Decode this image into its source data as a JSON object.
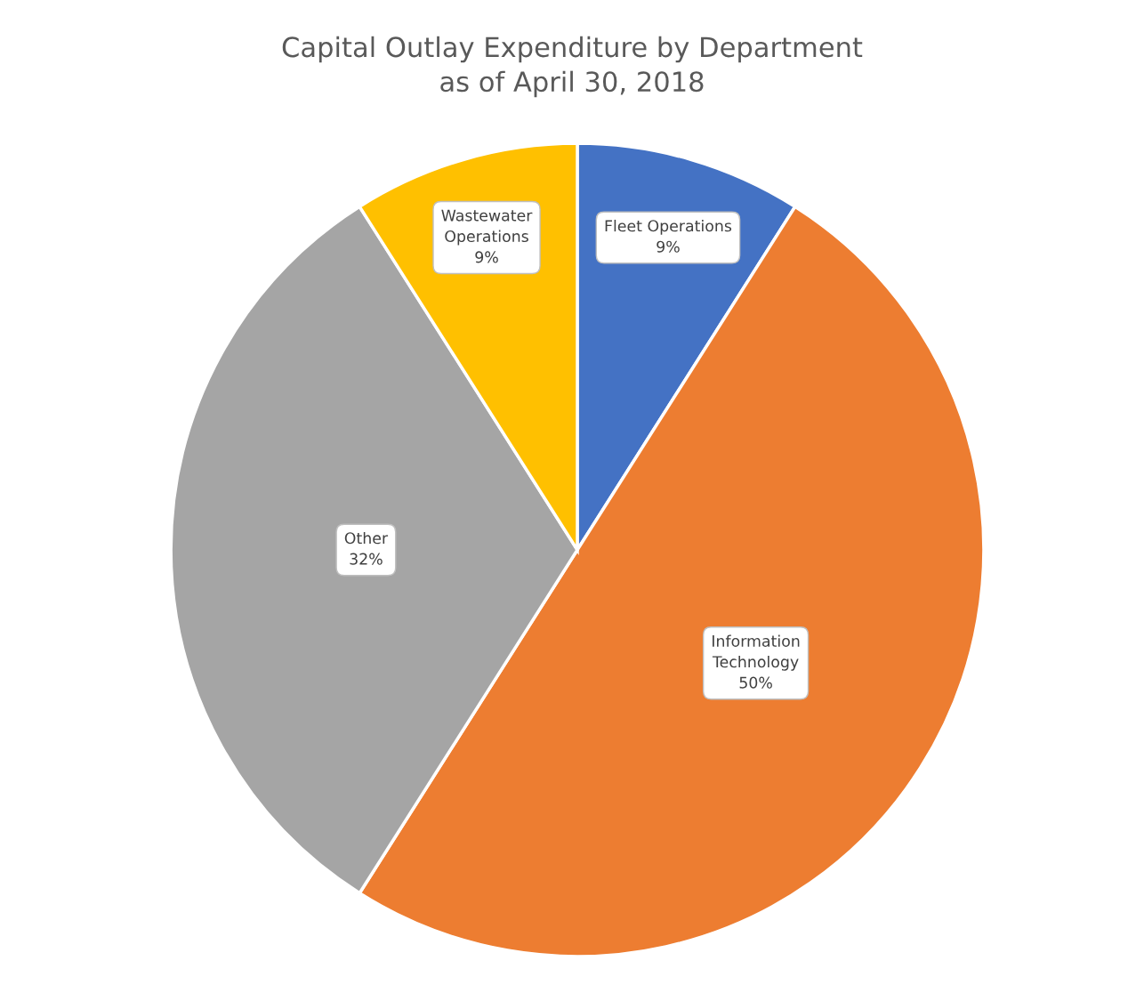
{
  "chart_data": {
    "type": "pie",
    "title": "Capital Outlay Expenditure by Department\nas of April 30, 2018",
    "categories": [
      "Fleet Operations",
      "Information Technology",
      "Other",
      "Wastewater Operations"
    ],
    "values": [
      9,
      50,
      32,
      9
    ],
    "colors": [
      "#4472c4",
      "#ed7d31",
      "#a5a5a5",
      "#ffc000"
    ],
    "value_labels": [
      "9%",
      "50%",
      "32%",
      "9%"
    ],
    "legend": false
  }
}
